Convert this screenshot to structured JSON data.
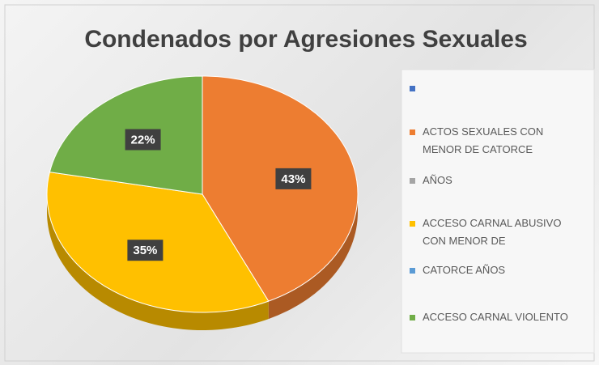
{
  "chart_data": {
    "type": "pie",
    "title": "Condenados por Agresiones Sexuales",
    "categories": [
      null,
      "ACTOS SEXUALES CON MENOR DE CATORCE",
      "AÑOS",
      "ACCESO CARNAL ABUSIVO CON MENOR DE",
      "CATORCE AÑOS",
      "ACCESO CARNAL VIOLENTO"
    ],
    "values": [
      null,
      43,
      null,
      35,
      null,
      22
    ],
    "value_labels": [
      null,
      "43%",
      null,
      "35%",
      null,
      "22%"
    ],
    "colors": [
      "#4472c4",
      "#ed7d31",
      "#a5a5a5",
      "#ffc000",
      "#5b9bd5",
      "#70ad47"
    ],
    "legend": "right"
  }
}
